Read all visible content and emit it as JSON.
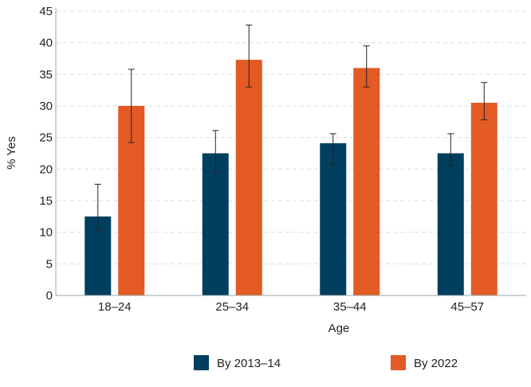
{
  "chart_data": {
    "type": "bar",
    "title": "",
    "xlabel": "Age",
    "ylabel": "% Yes",
    "categories": [
      "18–24",
      "25–34",
      "35–44",
      "45–57"
    ],
    "series": [
      {
        "name": "By 2013–14",
        "color": "#003f5f",
        "values": [
          12.5,
          22.5,
          24.1,
          22.5
        ],
        "error_low": [
          10.2,
          19.5,
          20.8,
          20.5
        ],
        "error_high": [
          17.6,
          26.1,
          25.6,
          25.6
        ]
      },
      {
        "name": "By 2022",
        "color": "#e35a24",
        "values": [
          30.0,
          37.3,
          36.0,
          30.5
        ],
        "error_low": [
          24.2,
          33.0,
          33.0,
          27.8
        ],
        "error_high": [
          35.8,
          42.8,
          39.5,
          33.7
        ]
      }
    ],
    "ylim": [
      0,
      45
    ],
    "yticks": [
      "0",
      "5",
      "10",
      "15",
      "20",
      "25",
      "30",
      "35",
      "40",
      "45"
    ],
    "grid": true,
    "legend_position": "bottom"
  }
}
